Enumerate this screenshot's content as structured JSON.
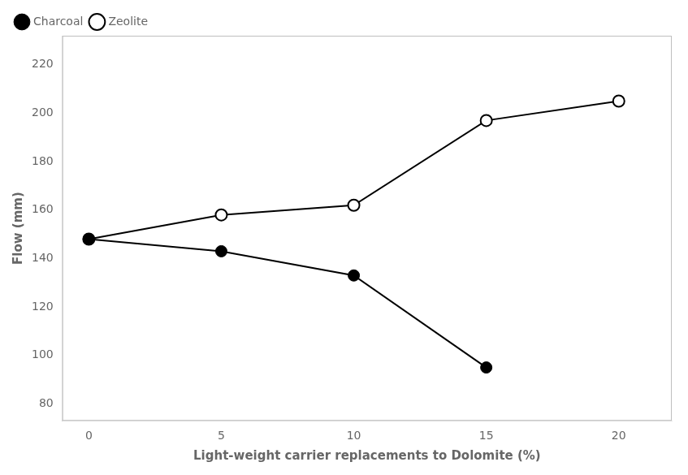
{
  "chart_data": {
    "type": "line",
    "xlabel": "Light-weight carrier replacements to Dolomite (%)",
    "ylabel": "Flow (mm)",
    "series": [
      {
        "name": "Charcoal",
        "color": "#000000",
        "marker": "circle",
        "x": [
          0,
          5,
          10,
          15
        ],
        "values": [
          148,
          143,
          133,
          95
        ]
      },
      {
        "name": "Zeolite",
        "color": "#000000",
        "marker": "open_circle",
        "x": [
          0,
          5,
          10,
          15,
          20
        ],
        "values": [
          148,
          158,
          162,
          197,
          205
        ]
      }
    ],
    "xlim": [
      -1,
      22
    ],
    "ylim": [
      73,
      232
    ],
    "xticks": [
      0,
      5,
      10,
      15,
      20
    ],
    "yticks": [
      80,
      100,
      120,
      140,
      160,
      180,
      200,
      220
    ],
    "grid": false,
    "legend": "upper left"
  }
}
